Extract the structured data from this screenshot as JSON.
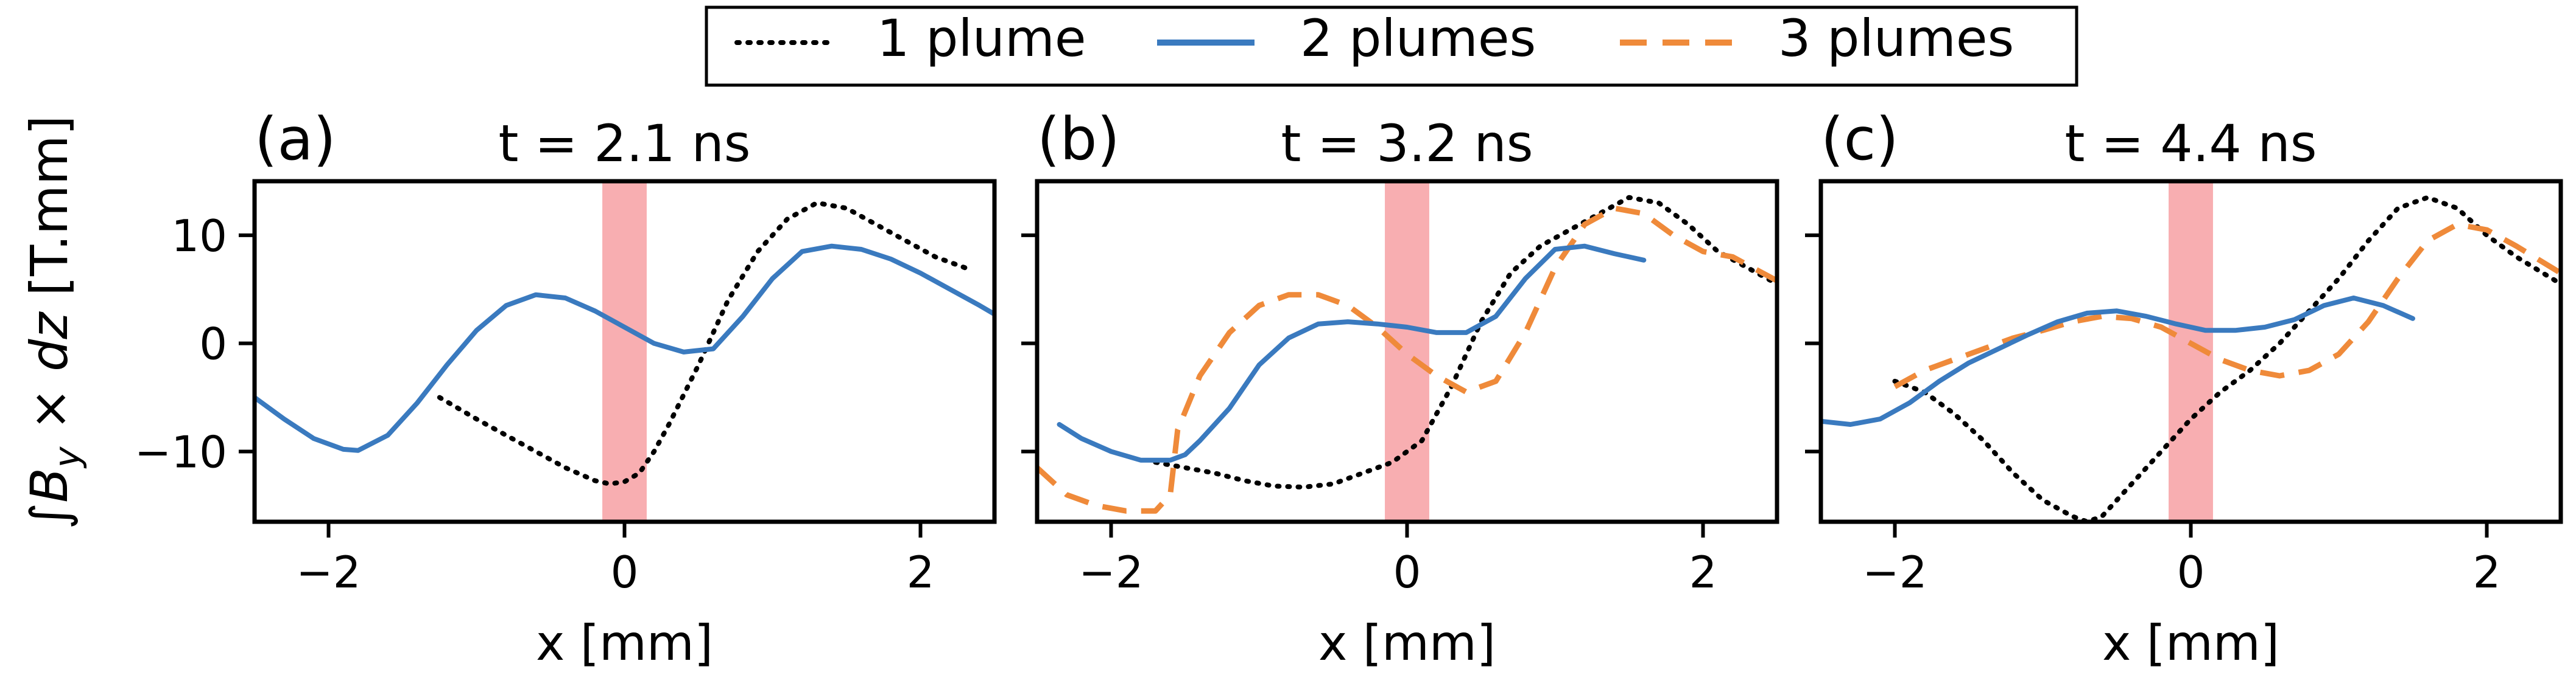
{
  "legend": {
    "entries": [
      {
        "label": "1 plume",
        "color": "#000000",
        "style": "dotted"
      },
      {
        "label": "2 plumes",
        "color": "#3a7abf",
        "style": "solid"
      },
      {
        "label": "3 plumes",
        "color": "#ef8a3a",
        "style": "dashed"
      }
    ],
    "placement": "top-center"
  },
  "shared": {
    "ylabel": "∫B_y × dz [T.mm]",
    "xlabel": "x [mm]",
    "band_color": "#f7a0a3"
  },
  "chart_data": [
    {
      "type": "line",
      "panel_label": "(a)",
      "title": "t = 2.1 ns",
      "xlabel": "x [mm]",
      "ylabel": "∫B_y × dz [T.mm]",
      "xlim": [
        -2.5,
        2.5
      ],
      "ylim": [
        -16.5,
        15
      ],
      "xticks": [
        -2,
        0,
        2
      ],
      "yticks": [
        -10,
        0,
        10
      ],
      "band": [
        -0.15,
        0.15
      ],
      "grid": false,
      "series": [
        {
          "name": "1 plume",
          "x": [
            -1.25,
            -1.0,
            -0.8,
            -0.6,
            -0.4,
            -0.2,
            -0.1,
            0.0,
            0.1,
            0.2,
            0.3,
            0.5,
            0.7,
            0.9,
            1.1,
            1.3,
            1.5,
            1.7,
            1.9,
            2.1,
            2.3
          ],
          "y": [
            -5,
            -7,
            -8.5,
            -10,
            -11.5,
            -12.7,
            -13,
            -12.8,
            -12,
            -10,
            -7.5,
            -2,
            4,
            8.5,
            11.5,
            13,
            12.5,
            11,
            9.5,
            8,
            7
          ]
        },
        {
          "name": "2 plumes",
          "x": [
            -2.5,
            -2.3,
            -2.1,
            -1.9,
            -1.8,
            -1.6,
            -1.4,
            -1.2,
            -1.0,
            -0.8,
            -0.6,
            -0.4,
            -0.2,
            0.0,
            0.2,
            0.4,
            0.6,
            0.8,
            1.0,
            1.2,
            1.4,
            1.6,
            1.8,
            2.0,
            2.2,
            2.4,
            2.5
          ],
          "y": [
            -5,
            -7,
            -8.8,
            -9.8,
            -9.9,
            -8.5,
            -5.5,
            -2,
            1.2,
            3.5,
            4.5,
            4.2,
            3,
            1.5,
            0,
            -0.8,
            -0.5,
            2.5,
            6,
            8.5,
            9,
            8.7,
            7.8,
            6.5,
            5,
            3.5,
            2.7
          ]
        }
      ]
    },
    {
      "type": "line",
      "panel_label": "(b)",
      "title": "t = 3.2 ns",
      "xlabel": "x [mm]",
      "ylabel": "",
      "xlim": [
        -2.5,
        2.5
      ],
      "ylim": [
        -16.5,
        15
      ],
      "xticks": [
        -2,
        0,
        2
      ],
      "yticks": [
        -10,
        0,
        10
      ],
      "band": [
        -0.15,
        0.15
      ],
      "grid": false,
      "series": [
        {
          "name": "1 plume",
          "x": [
            -1.7,
            -1.5,
            -1.3,
            -1.1,
            -0.9,
            -0.7,
            -0.5,
            -0.3,
            -0.1,
            0.1,
            0.3,
            0.5,
            0.7,
            0.9,
            1.1,
            1.3,
            1.5,
            1.7,
            1.9,
            2.1,
            2.3,
            2.5
          ],
          "y": [
            -11,
            -11.5,
            -12,
            -12.7,
            -13.2,
            -13.3,
            -13,
            -12,
            -11,
            -9,
            -4,
            2,
            6.5,
            9,
            10.5,
            12,
            13.5,
            13,
            11,
            8.5,
            7,
            5.5
          ]
        },
        {
          "name": "2 plumes",
          "x": [
            -2.35,
            -2.2,
            -2.0,
            -1.8,
            -1.6,
            -1.5,
            -1.4,
            -1.2,
            -1.0,
            -0.8,
            -0.6,
            -0.4,
            -0.2,
            0.0,
            0.2,
            0.4,
            0.6,
            0.8,
            1.0,
            1.2,
            1.4,
            1.6
          ],
          "y": [
            -7.5,
            -8.8,
            -10,
            -10.8,
            -10.8,
            -10.3,
            -9,
            -6,
            -2,
            0.5,
            1.8,
            2,
            1.8,
            1.5,
            1,
            1,
            2.5,
            6,
            8.7,
            9,
            8.3,
            7.7
          ]
        },
        {
          "name": "3 plumes",
          "x": [
            -2.5,
            -2.3,
            -2.1,
            -1.9,
            -1.7,
            -1.6,
            -1.55,
            -1.4,
            -1.2,
            -1.0,
            -0.8,
            -0.6,
            -0.4,
            -0.2,
            0.0,
            0.2,
            0.4,
            0.6,
            0.8,
            1.0,
            1.2,
            1.4,
            1.6,
            1.8,
            2.0,
            2.2,
            2.5
          ],
          "y": [
            -11.5,
            -14,
            -15,
            -15.5,
            -15.5,
            -14,
            -8,
            -3,
            1,
            3.5,
            4.5,
            4.5,
            3.5,
            1.5,
            -1,
            -3,
            -4.5,
            -3.5,
            1,
            7,
            11,
            12.5,
            12,
            10,
            8.5,
            8,
            5.8
          ]
        }
      ]
    },
    {
      "type": "line",
      "panel_label": "(c)",
      "title": "t = 4.4 ns",
      "xlabel": "x [mm]",
      "ylabel": "",
      "xlim": [
        -2.5,
        2.5
      ],
      "ylim": [
        -16.5,
        15
      ],
      "xticks": [
        -2,
        0,
        2
      ],
      "yticks": [
        -10,
        0,
        10
      ],
      "band": [
        -0.15,
        0.15
      ],
      "grid": false,
      "series": [
        {
          "name": "1 plume",
          "x": [
            -2.0,
            -1.8,
            -1.6,
            -1.4,
            -1.2,
            -1.0,
            -0.8,
            -0.7,
            -0.6,
            -0.4,
            -0.2,
            0.0,
            0.2,
            0.4,
            0.6,
            0.8,
            1.0,
            1.2,
            1.4,
            1.6,
            1.8,
            2.0,
            2.2,
            2.5
          ],
          "y": [
            -3.5,
            -4.5,
            -6.5,
            -9,
            -12,
            -14.5,
            -16,
            -16.5,
            -16,
            -13,
            -10,
            -7,
            -4.5,
            -2.5,
            0,
            3,
            6,
            9.5,
            12.5,
            13.5,
            12.5,
            10,
            8,
            5.5
          ]
        },
        {
          "name": "2 plumes",
          "x": [
            -2.5,
            -2.3,
            -2.1,
            -1.9,
            -1.7,
            -1.5,
            -1.3,
            -1.1,
            -0.9,
            -0.7,
            -0.5,
            -0.3,
            -0.1,
            0.1,
            0.3,
            0.5,
            0.7,
            0.9,
            1.1,
            1.3,
            1.5
          ],
          "y": [
            -7.2,
            -7.5,
            -7,
            -5.5,
            -3.5,
            -1.8,
            -0.5,
            0.8,
            2,
            2.8,
            3,
            2.5,
            1.8,
            1.2,
            1.2,
            1.5,
            2.2,
            3.5,
            4.2,
            3.5,
            2.3
          ]
        },
        {
          "name": "3 plumes",
          "x": [
            -2.0,
            -1.8,
            -1.6,
            -1.4,
            -1.2,
            -1.0,
            -0.8,
            -0.6,
            -0.4,
            -0.2,
            0.0,
            0.2,
            0.4,
            0.6,
            0.8,
            1.0,
            1.2,
            1.4,
            1.6,
            1.8,
            2.0,
            2.2,
            2.5
          ],
          "y": [
            -4,
            -2.5,
            -1.5,
            -0.5,
            0.5,
            1.2,
            2,
            2.5,
            2.3,
            1.5,
            0,
            -1.5,
            -2.5,
            -3,
            -2.5,
            -1,
            2,
            6,
            9.5,
            11,
            10.5,
            9,
            6.5
          ]
        }
      ]
    }
  ]
}
